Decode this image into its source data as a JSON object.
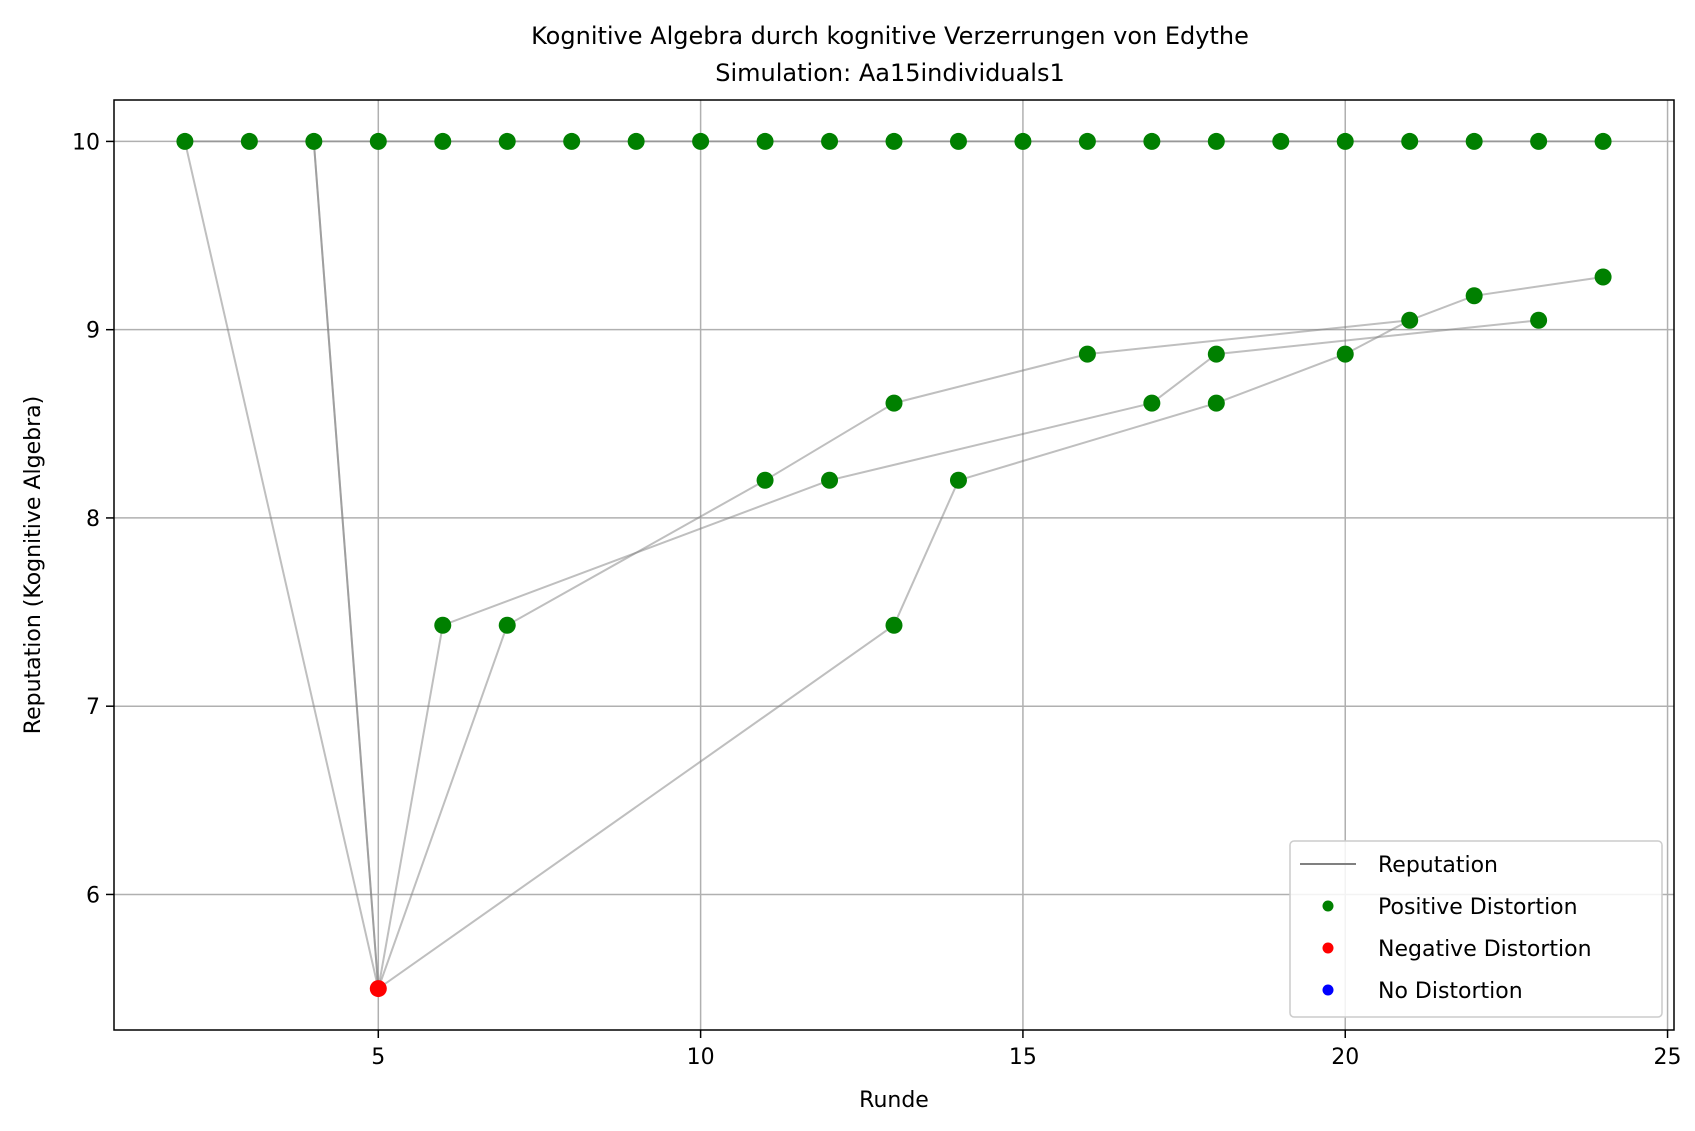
{
  "chart_data": {
    "type": "scatter",
    "title": "Kognitive Algebra durch kognitive Verzerrungen von Edythe",
    "subtitle": "Simulation: Aa15individuals1",
    "xlabel": "Runde",
    "ylabel": "Reputation (Kognitive Algebra)",
    "xlim": [
      0.9,
      25.1
    ],
    "ylim": [
      5.28,
      10.22
    ],
    "xticks": [
      5,
      10,
      15,
      20,
      25
    ],
    "yticks": [
      6,
      7,
      8,
      9,
      10
    ],
    "grid": true,
    "legend_position": "bottom-right",
    "colors": {
      "reputation_line": "#808080",
      "positive": "#008000",
      "negative": "#ff0000",
      "none": "#0000ff",
      "grid": "#b0b0b0"
    },
    "legend": [
      {
        "label": "Reputation",
        "kind": "line",
        "color": "#808080"
      },
      {
        "label": "Positive Distortion",
        "kind": "dot",
        "color": "#008000"
      },
      {
        "label": "Negative Distortion",
        "kind": "dot",
        "color": "#ff0000"
      },
      {
        "label": "No Distortion",
        "kind": "dot",
        "color": "#0000ff"
      }
    ],
    "series": [
      {
        "points": [
          [
            2,
            10
          ],
          [
            5,
            5.5
          ],
          [
            6,
            7.43
          ],
          [
            12,
            8.2
          ],
          [
            17,
            8.61
          ],
          [
            18,
            8.87
          ],
          [
            23,
            9.05
          ]
        ]
      },
      {
        "points": [
          [
            4,
            10
          ],
          [
            5,
            5.5
          ],
          [
            7,
            7.43
          ],
          [
            11,
            8.2
          ],
          [
            13,
            8.61
          ],
          [
            16,
            8.87
          ],
          [
            21,
            9.05
          ],
          [
            22,
            9.18
          ],
          [
            24,
            9.28
          ]
        ]
      },
      {
        "points": [
          [
            4,
            10
          ],
          [
            5,
            5.5
          ],
          [
            13,
            7.43
          ],
          [
            14,
            8.2
          ],
          [
            18,
            8.61
          ],
          [
            20,
            8.87
          ],
          [
            21,
            9.05
          ]
        ]
      },
      {
        "points": [
          [
            2,
            10
          ],
          [
            3,
            10
          ],
          [
            4,
            10
          ],
          [
            5,
            10
          ],
          [
            6,
            10
          ],
          [
            7,
            10
          ],
          [
            8,
            10
          ],
          [
            9,
            10
          ],
          [
            10,
            10
          ],
          [
            11,
            10
          ],
          [
            12,
            10
          ],
          [
            13,
            10
          ],
          [
            14,
            10
          ],
          [
            15,
            10
          ],
          [
            16,
            10
          ],
          [
            17,
            10
          ],
          [
            18,
            10
          ],
          [
            19,
            10
          ],
          [
            20,
            10
          ],
          [
            21,
            10
          ],
          [
            22,
            10
          ],
          [
            23,
            10
          ],
          [
            24,
            10
          ]
        ]
      }
    ],
    "distortion_points": [
      {
        "x": 5,
        "y": 5.5,
        "type": "negative"
      },
      {
        "x": 6,
        "y": 7.43,
        "type": "positive"
      },
      {
        "x": 7,
        "y": 7.43,
        "type": "positive"
      },
      {
        "x": 13,
        "y": 7.43,
        "type": "positive"
      },
      {
        "x": 11,
        "y": 8.2,
        "type": "positive"
      },
      {
        "x": 12,
        "y": 8.2,
        "type": "positive"
      },
      {
        "x": 14,
        "y": 8.2,
        "type": "positive"
      },
      {
        "x": 13,
        "y": 8.61,
        "type": "positive"
      },
      {
        "x": 17,
        "y": 8.61,
        "type": "positive"
      },
      {
        "x": 18,
        "y": 8.61,
        "type": "positive"
      },
      {
        "x": 16,
        "y": 8.87,
        "type": "positive"
      },
      {
        "x": 18,
        "y": 8.87,
        "type": "positive"
      },
      {
        "x": 20,
        "y": 8.87,
        "type": "positive"
      },
      {
        "x": 21,
        "y": 9.05,
        "type": "positive"
      },
      {
        "x": 23,
        "y": 9.05,
        "type": "positive"
      },
      {
        "x": 22,
        "y": 9.18,
        "type": "positive"
      },
      {
        "x": 24,
        "y": 9.28,
        "type": "positive"
      },
      {
        "x": 2,
        "y": 10,
        "type": "positive"
      },
      {
        "x": 3,
        "y": 10,
        "type": "positive"
      },
      {
        "x": 4,
        "y": 10,
        "type": "positive"
      },
      {
        "x": 5,
        "y": 10,
        "type": "positive"
      },
      {
        "x": 6,
        "y": 10,
        "type": "positive"
      },
      {
        "x": 7,
        "y": 10,
        "type": "positive"
      },
      {
        "x": 8,
        "y": 10,
        "type": "positive"
      },
      {
        "x": 9,
        "y": 10,
        "type": "positive"
      },
      {
        "x": 10,
        "y": 10,
        "type": "positive"
      },
      {
        "x": 11,
        "y": 10,
        "type": "positive"
      },
      {
        "x": 12,
        "y": 10,
        "type": "positive"
      },
      {
        "x": 13,
        "y": 10,
        "type": "positive"
      },
      {
        "x": 14,
        "y": 10,
        "type": "positive"
      },
      {
        "x": 15,
        "y": 10,
        "type": "positive"
      },
      {
        "x": 16,
        "y": 10,
        "type": "positive"
      },
      {
        "x": 17,
        "y": 10,
        "type": "positive"
      },
      {
        "x": 18,
        "y": 10,
        "type": "positive"
      },
      {
        "x": 19,
        "y": 10,
        "type": "positive"
      },
      {
        "x": 20,
        "y": 10,
        "type": "positive"
      },
      {
        "x": 21,
        "y": 10,
        "type": "positive"
      },
      {
        "x": 22,
        "y": 10,
        "type": "positive"
      },
      {
        "x": 23,
        "y": 10,
        "type": "positive"
      },
      {
        "x": 24,
        "y": 10,
        "type": "positive"
      }
    ]
  }
}
